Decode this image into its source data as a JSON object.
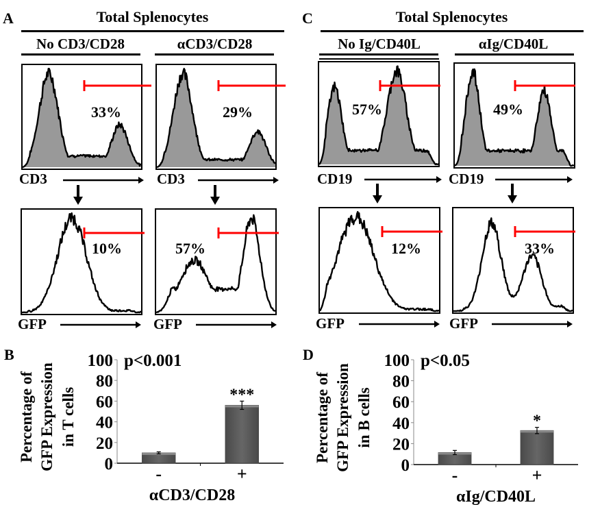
{
  "panels": {
    "A": {
      "letter": "A",
      "title": "Total Splenocytes",
      "conditions": [
        "No CD3/CD28",
        "αCD3/CD28"
      ],
      "top_axis_label": "CD3",
      "bottom_axis_label": "GFP",
      "top_percentages": [
        "33%",
        "29%"
      ],
      "bottom_percentages": [
        "10%",
        "57%"
      ]
    },
    "C": {
      "letter": "C",
      "title": "Total Splenocytes",
      "conditions": [
        "No Ig/CD40L",
        "αIg/CD40L"
      ],
      "top_axis_label": "CD19",
      "bottom_axis_label": "GFP",
      "top_percentages": [
        "57%",
        "49%"
      ],
      "bottom_percentages": [
        "12%",
        "33%"
      ]
    },
    "B": {
      "letter": "B"
    },
    "D": {
      "letter": "D"
    }
  },
  "colors": {
    "gate": "#ff0000",
    "fill": "#999999",
    "bar": "#5a5a5a",
    "line": "#000000"
  },
  "chart_data": [
    {
      "id": "B",
      "type": "bar",
      "title": "",
      "annotation": "p<0.001",
      "ylabel": "Percentage of GFP Expression in T cells",
      "ylabel_lines": [
        "Percentage of",
        "GFP Expression",
        "in T cells"
      ],
      "xlabel": "αCD3/CD28",
      "categories": [
        "-",
        "+"
      ],
      "values": [
        10,
        56
      ],
      "errors": [
        1,
        4
      ],
      "significance": [
        "",
        "***"
      ],
      "ylim": [
        0,
        100
      ],
      "yticks": [
        0,
        20,
        40,
        60,
        80,
        100
      ],
      "grid": false
    },
    {
      "id": "D",
      "type": "bar",
      "title": "",
      "annotation": "p<0.05",
      "ylabel": "Percentage of GFP Expression in B cells",
      "ylabel_lines": [
        "Percentage of",
        "GFP Expression",
        "in B cells"
      ],
      "xlabel": "αIg/CD40L",
      "categories": [
        "-",
        "+"
      ],
      "values": [
        11.5,
        32.5
      ],
      "errors": [
        2,
        3
      ],
      "significance": [
        "",
        "*"
      ],
      "ylim": [
        0,
        100
      ],
      "yticks": [
        0,
        20,
        40,
        60,
        80,
        100
      ],
      "grid": false
    }
  ],
  "histograms": {
    "A_top_left": {
      "peaks": [
        [
          0.22,
          1.0,
          0.08
        ],
        [
          0.82,
          0.45,
          0.07
        ]
      ],
      "baseline": 0.12,
      "filled": true
    },
    "A_top_right": {
      "peaks": [
        [
          0.22,
          1.0,
          0.08
        ],
        [
          0.85,
          0.38,
          0.07
        ]
      ],
      "baseline": 0.08,
      "filled": true
    },
    "A_bot_left": {
      "peaks": [
        [
          0.42,
          1.0,
          0.12
        ]
      ],
      "baseline": 0.02,
      "filled": false
    },
    "A_bot_right": {
      "peaks": [
        [
          0.32,
          0.55,
          0.12
        ],
        [
          0.8,
          1.0,
          0.07
        ]
      ],
      "baseline": 0.25,
      "filled": false
    },
    "C_top_left": {
      "peaks": [
        [
          0.13,
          0.82,
          0.06
        ],
        [
          0.65,
          1.0,
          0.08
        ]
      ],
      "baseline": 0.15,
      "filled": true
    },
    "C_top_right": {
      "peaks": [
        [
          0.15,
          1.0,
          0.06
        ],
        [
          0.75,
          0.8,
          0.06
        ]
      ],
      "baseline": 0.16,
      "filled": true
    },
    "C_bot_left": {
      "peaks": [
        [
          0.3,
          1.0,
          0.15
        ]
      ],
      "baseline": 0.02,
      "filled": false
    },
    "C_bot_right": {
      "peaks": [
        [
          0.32,
          0.93,
          0.08
        ],
        [
          0.66,
          0.58,
          0.08
        ]
      ],
      "baseline": 0.05,
      "filled": false
    }
  }
}
